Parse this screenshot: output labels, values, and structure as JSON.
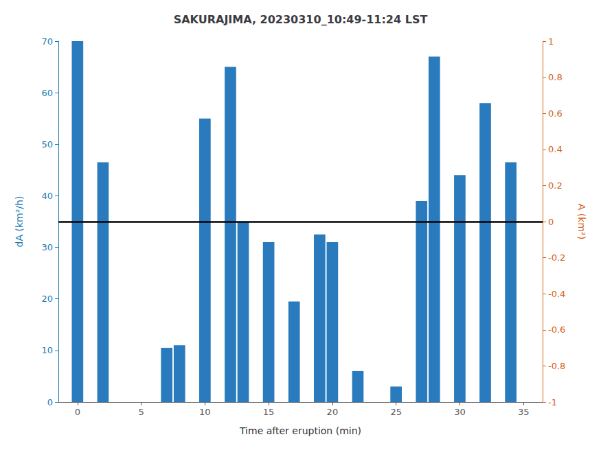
{
  "chart_data": {
    "type": "bar",
    "title": "SAKURAJIMA, 20230310_10:49-11:24 LST",
    "x": [
      0,
      2,
      7,
      8,
      10,
      12,
      13,
      15,
      17,
      19,
      20,
      22,
      25,
      27,
      28,
      30,
      32,
      34
    ],
    "values": [
      70,
      46.5,
      10.5,
      11,
      55,
      65,
      35,
      31,
      19.5,
      32.5,
      31,
      6,
      3,
      39,
      67,
      44,
      58,
      46.5
    ],
    "color": "#2a7bbd",
    "xlabel": "Time after eruption (min)",
    "ylabel": "dA (km²/h)",
    "y2label": "A (km²)",
    "xlim": [
      -1.5,
      36.5
    ],
    "xticks": [
      0,
      5,
      10,
      15,
      20,
      25,
      30,
      35
    ],
    "ylim": [
      0,
      70
    ],
    "yticks": [
      0,
      10,
      20,
      30,
      40,
      50,
      60,
      70
    ],
    "y2lim": [
      -1,
      1
    ],
    "y2ticks": [
      -1.0,
      -0.8,
      -0.6,
      -0.4,
      -0.2,
      0.0,
      0.2,
      0.4,
      0.6,
      0.8,
      1.0
    ],
    "y_color": "#1b7ab3",
    "y2_color": "#d45f17",
    "reference_lines": [
      {
        "y": 35,
        "color": "#000000"
      }
    ],
    "grid": false
  }
}
